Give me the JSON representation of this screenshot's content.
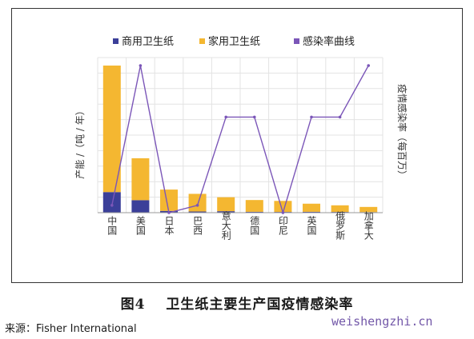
{
  "figure": {
    "number": "图4",
    "caption": "卫生纸主要生产国疫情感染率",
    "source": "来源：Fisher International",
    "watermark": "weishengzhi.cn"
  },
  "chart_data": {
    "type": "bar",
    "stacked": true,
    "categories": [
      "中国",
      "美国",
      "日本",
      "巴西",
      "意大利",
      "德国",
      "印尼",
      "英国",
      "俄罗斯",
      "加拿大"
    ],
    "series": [
      {
        "name": "商用卫生纸",
        "kind": "bar",
        "color": "#3b3f99",
        "values": [
          1.4,
          0.85,
          0.12,
          0.08,
          0.1,
          0.06,
          0.05,
          0.06,
          0.05,
          0.04
        ]
      },
      {
        "name": "家用卫生纸",
        "kind": "bar",
        "color": "#f4b731",
        "values": [
          8.6,
          2.85,
          1.45,
          1.2,
          0.95,
          0.8,
          0.75,
          0.55,
          0.45,
          0.35
        ]
      },
      {
        "name": "感染率曲线",
        "kind": "line",
        "axis": "right",
        "color": "#7b56b8",
        "values": [
          0.05,
          1.0,
          0.0,
          0.05,
          0.65,
          0.65,
          0.0,
          0.65,
          0.65,
          1.0
        ]
      }
    ],
    "ylabel": "产能 /（吨 / 年）",
    "y2label": "疫情感染率（每百万）",
    "ylim": [
      0,
      10
    ],
    "y2lim": [
      0,
      1.0
    ],
    "legend_position": "top-center",
    "grid": true
  }
}
